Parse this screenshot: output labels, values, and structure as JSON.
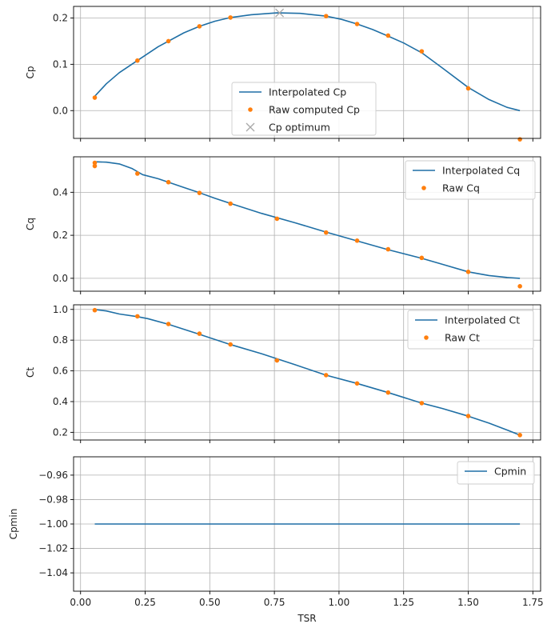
{
  "chart_data": [
    {
      "type": "line",
      "ylabel": "Cp",
      "ylim": [
        -0.06,
        0.225
      ],
      "yticks": [
        0.0,
        0.1,
        0.2
      ],
      "ytick_labels": [
        "0.0",
        "0.1",
        "0.2"
      ],
      "grid": true,
      "legend_placement": "lower-center",
      "series": [
        {
          "name": "Interpolated Cp",
          "kind": "line",
          "color": "#1f6fa5",
          "x": [
            0.055,
            0.1,
            0.15,
            0.22,
            0.3,
            0.4,
            0.46,
            0.52,
            0.58,
            0.66,
            0.76,
            0.85,
            0.95,
            1.01,
            1.07,
            1.13,
            1.19,
            1.25,
            1.32,
            1.4,
            1.5,
            1.58,
            1.65,
            1.7
          ],
          "y": [
            0.031,
            0.058,
            0.082,
            0.108,
            0.138,
            0.168,
            0.182,
            0.193,
            0.201,
            0.207,
            0.211,
            0.21,
            0.204,
            0.197,
            0.187,
            0.175,
            0.161,
            0.146,
            0.125,
            0.092,
            0.05,
            0.024,
            0.007,
            0.0
          ]
        },
        {
          "name": "Raw computed Cp",
          "kind": "points",
          "color": "#ff7f0e",
          "x": [
            0.055,
            0.22,
            0.34,
            0.46,
            0.58,
            0.95,
            1.07,
            1.19,
            1.32,
            1.5,
            1.7
          ],
          "y": [
            0.028,
            0.108,
            0.15,
            0.182,
            0.201,
            0.204,
            0.187,
            0.162,
            0.128,
            0.048,
            -0.062
          ]
        },
        {
          "name": "Cp optimum",
          "kind": "marker-x",
          "color": "#a9a9a9",
          "x": [
            0.77
          ],
          "y": [
            0.211
          ]
        }
      ]
    },
    {
      "type": "line",
      "ylabel": "Cq",
      "ylim": [
        -0.06,
        0.565
      ],
      "yticks": [
        0.0,
        0.2,
        0.4
      ],
      "ytick_labels": [
        "0.0",
        "0.2",
        "0.4"
      ],
      "grid": true,
      "legend_placement": "upper-right",
      "series": [
        {
          "name": "Interpolated Cq",
          "kind": "line",
          "color": "#1f6fa5",
          "x": [
            0.055,
            0.1,
            0.15,
            0.2,
            0.24,
            0.3,
            0.34,
            0.4,
            0.46,
            0.52,
            0.58,
            0.7,
            0.83,
            0.95,
            1.07,
            1.19,
            1.32,
            1.4,
            1.5,
            1.58,
            1.65,
            1.7
          ],
          "y": [
            0.542,
            0.54,
            0.532,
            0.51,
            0.482,
            0.463,
            0.447,
            0.422,
            0.398,
            0.372,
            0.348,
            0.302,
            0.258,
            0.215,
            0.174,
            0.133,
            0.093,
            0.065,
            0.03,
            0.013,
            0.004,
            0.0
          ]
        },
        {
          "name": "Raw Cq",
          "kind": "points",
          "color": "#ff7f0e",
          "x": [
            0.055,
            0.055,
            0.22,
            0.34,
            0.46,
            0.58,
            0.76,
            0.95,
            1.07,
            1.19,
            1.32,
            1.5,
            1.7
          ],
          "y": [
            0.537,
            0.522,
            0.487,
            0.447,
            0.397,
            0.347,
            0.277,
            0.213,
            0.175,
            0.135,
            0.095,
            0.03,
            -0.037
          ]
        }
      ]
    },
    {
      "type": "line",
      "ylabel": "Ct",
      "ylim": [
        0.15,
        1.03
      ],
      "yticks": [
        0.2,
        0.4,
        0.6,
        0.8,
        1.0
      ],
      "ytick_labels": [
        "0.2",
        "0.4",
        "0.6",
        "0.8",
        "1.0"
      ],
      "grid": true,
      "legend_placement": "upper-right",
      "series": [
        {
          "name": "Interpolated Ct",
          "kind": "line",
          "color": "#1f6fa5",
          "x": [
            0.055,
            0.1,
            0.15,
            0.22,
            0.26,
            0.34,
            0.46,
            0.58,
            0.7,
            0.83,
            0.95,
            1.07,
            1.19,
            1.32,
            1.4,
            1.5,
            1.58,
            1.65,
            1.7
          ],
          "y": [
            1.0,
            0.99,
            0.97,
            0.953,
            0.94,
            0.903,
            0.838,
            0.771,
            0.712,
            0.64,
            0.572,
            0.518,
            0.459,
            0.39,
            0.355,
            0.305,
            0.26,
            0.215,
            0.182
          ]
        },
        {
          "name": "Raw Ct",
          "kind": "points",
          "color": "#ff7f0e",
          "x": [
            0.055,
            0.22,
            0.34,
            0.46,
            0.58,
            0.76,
            0.95,
            1.07,
            1.19,
            1.32,
            1.5,
            1.7
          ],
          "y": [
            0.995,
            0.955,
            0.905,
            0.842,
            0.772,
            0.668,
            0.572,
            0.518,
            0.459,
            0.39,
            0.306,
            0.182
          ]
        }
      ]
    },
    {
      "type": "line",
      "xlabel": "TSR",
      "ylabel": "Cpmin",
      "ylim": [
        -1.055,
        -0.945
      ],
      "yticks": [
        -1.04,
        -1.02,
        -1.0,
        -0.98,
        -0.96
      ],
      "ytick_labels": [
        "−1.04",
        "−1.02",
        "−1.00",
        "−0.98",
        "−0.96"
      ],
      "grid": true,
      "legend_placement": "upper-right",
      "series": [
        {
          "name": "Cpmin",
          "kind": "line",
          "color": "#1f6fa5",
          "x": [
            0.055,
            1.7
          ],
          "y": [
            -1.0,
            -1.0
          ]
        }
      ]
    }
  ],
  "shared_x": {
    "xlim": [
      -0.027,
      1.78
    ],
    "xticks": [
      0.0,
      0.25,
      0.5,
      0.75,
      1.0,
      1.25,
      1.5,
      1.75
    ],
    "xtick_labels": [
      "0.00",
      "0.25",
      "0.50",
      "0.75",
      "1.00",
      "1.25",
      "1.50",
      "1.75"
    ]
  }
}
